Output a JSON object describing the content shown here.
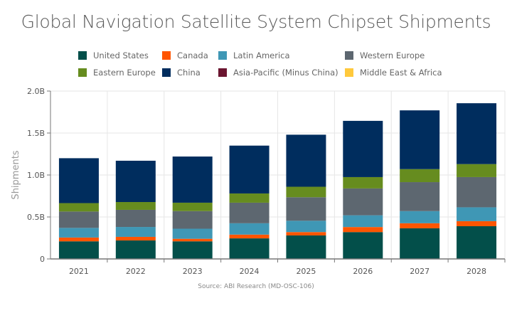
{
  "chart_data": {
    "type": "bar",
    "stacked": true,
    "title": "Global Navigation Satellite System Chipset Shipments",
    "ylabel": "Shipments",
    "xlabel": "",
    "ylim": [
      0,
      2.0
    ],
    "yticks": [
      "0",
      "0.5B",
      "1.0B",
      "1.5B",
      "2.0B"
    ],
    "ytick_values": [
      0,
      0.5,
      1.0,
      1.5,
      2.0
    ],
    "grid": true,
    "legend_placement": "top",
    "categories": [
      "2021",
      "2022",
      "2023",
      "2024",
      "2025",
      "2026",
      "2027",
      "2028"
    ],
    "series": [
      {
        "name": "United States",
        "color": "#034f4a",
        "values": [
          0.21,
          0.22,
          0.21,
          0.245,
          0.28,
          0.32,
          0.365,
          0.39
        ]
      },
      {
        "name": "Canada",
        "color": "#ff5500",
        "values": [
          0.045,
          0.043,
          0.03,
          0.045,
          0.04,
          0.06,
          0.06,
          0.06
        ]
      },
      {
        "name": "Latin America",
        "color": "#3f97b5",
        "values": [
          0.115,
          0.118,
          0.12,
          0.135,
          0.135,
          0.14,
          0.145,
          0.165
        ]
      },
      {
        "name": "Western Europe",
        "color": "#5d6770",
        "values": [
          0.195,
          0.204,
          0.21,
          0.245,
          0.28,
          0.32,
          0.345,
          0.36
        ]
      },
      {
        "name": "Eastern Europe",
        "color": "#668c1f",
        "values": [
          0.1,
          0.093,
          0.1,
          0.11,
          0.125,
          0.135,
          0.155,
          0.155
        ]
      },
      {
        "name": "China",
        "color": "#002d5e",
        "values": [
          0.535,
          0.492,
          0.55,
          0.57,
          0.62,
          0.67,
          0.7,
          0.725
        ]
      },
      {
        "name": "Asia-Pacific (Minus China)",
        "color": "#6b1530",
        "values": [
          0,
          0,
          0,
          0,
          0,
          0,
          0,
          0
        ]
      },
      {
        "name": "Middle East & Africa",
        "color": "#ffc93c",
        "values": [
          0,
          0,
          0,
          0,
          0,
          0,
          0,
          0
        ]
      }
    ],
    "source": "Source: ABI Research (MD-OSC-106)"
  }
}
